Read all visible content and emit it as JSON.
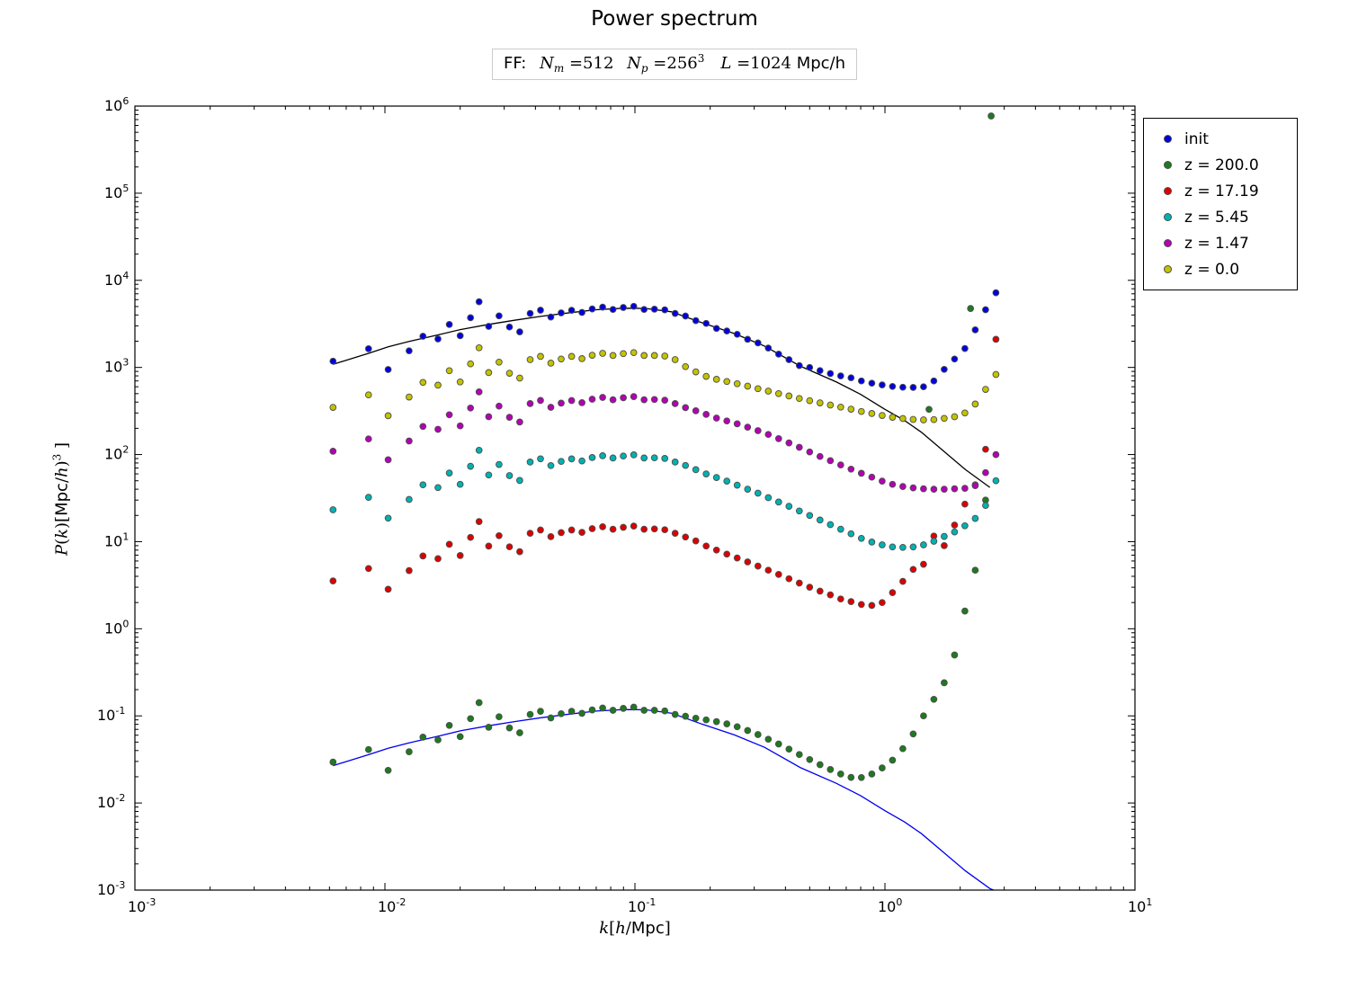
{
  "header": {
    "title": "Power spectrum",
    "subtitle_text": "FF:  N_m =512  N_p =256^3   L =1024 Mpc/h",
    "subtitle_parts": [
      {
        "t": "FF:  ",
        "k": "plain"
      },
      {
        "t": "N",
        "k": "mi"
      },
      {
        "t": "m",
        "k": "sub"
      },
      {
        "t": " =512",
        "k": "mr"
      },
      {
        "t": "  ",
        "k": "plain"
      },
      {
        "t": "N",
        "k": "mi"
      },
      {
        "t": "p",
        "k": "sub"
      },
      {
        "t": " =256",
        "k": "mr"
      },
      {
        "t": "3",
        "k": "sup"
      },
      {
        "t": "  ",
        "k": "plain"
      },
      {
        "t": "L",
        "k": "mi"
      },
      {
        "t": " =1024",
        "k": "mr"
      },
      {
        "t": " Mpc/h",
        "k": "plain"
      }
    ]
  },
  "legend": {
    "items": [
      {
        "label": "init",
        "color": "#0000dd"
      },
      {
        "label": "z = 200.0",
        "color": "#1e7a1e"
      },
      {
        "label": "z = 17.19",
        "color": "#dd0000"
      },
      {
        "label": "z = 5.45",
        "color": "#00b2b2"
      },
      {
        "label": "z = 1.47",
        "color": "#b400b4"
      },
      {
        "label": "z = 0.0",
        "color": "#c3c300"
      }
    ]
  },
  "axes": {
    "xlabel_text": "k[h/Mpc]",
    "ylabel_text": "P(k)[Mpc/h)^3 ]",
    "x_tick_exponents": [
      -3,
      -2,
      -1,
      0,
      1
    ],
    "y_tick_exponents": [
      -3,
      -2,
      -1,
      0,
      1,
      2,
      3,
      4,
      5,
      6
    ]
  },
  "chart_data": {
    "type": "scatter",
    "title": "Power spectrum",
    "xlabel": "k[h/Mpc]",
    "ylabel": "P(k)[Mpc/h)^3 ]",
    "x_log_range": [
      -3,
      1
    ],
    "y_log_range": [
      -3,
      6
    ],
    "grid": false,
    "legend_position": "outside-top-right",
    "k": [
      0.0062,
      0.0086,
      0.0103,
      0.0125,
      0.0142,
      0.0163,
      0.0181,
      0.02,
      0.022,
      0.0238,
      0.026,
      0.0286,
      0.0315,
      0.0346,
      0.0381,
      0.0419,
      0.0461,
      0.0507,
      0.0558,
      0.0614,
      0.0675,
      0.0743,
      0.0817,
      0.0899,
      0.0989,
      0.1088,
      0.1197,
      0.1317,
      0.1448,
      0.1593,
      0.1752,
      0.1927,
      0.212,
      0.2332,
      0.2565,
      0.2822,
      0.3104,
      0.3415,
      0.3756,
      0.4132,
      0.4545,
      0.5,
      0.55,
      0.605,
      0.6655,
      0.732,
      0.8052,
      0.8858,
      0.9744,
      1.0718,
      1.179,
      1.2969,
      1.4266,
      1.5692,
      1.7261,
      1.8988,
      2.0886,
      2.2975,
      2.5272,
      2.78
    ],
    "series": [
      {
        "name": "init",
        "color": "#0000dd",
        "P": [
          1180,
          1640,
          946,
          1550,
          2280,
          2120,
          3110,
          2310,
          3720,
          5680,
          2960,
          3910,
          2910,
          2560,
          4170,
          4540,
          3790,
          4230,
          4530,
          4280,
          4690,
          4920,
          4630,
          4880,
          5030,
          4630,
          4660,
          4580,
          4170,
          3890,
          3450,
          3200,
          2800,
          2620,
          2400,
          2100,
          1910,
          1670,
          1420,
          1230,
          1050,
          1000,
          920,
          850,
          800,
          760,
          700,
          660,
          630,
          605,
          593,
          590,
          600,
          700,
          950,
          1250,
          1650,
          2700,
          4600,
          7200
        ]
      },
      {
        "name": "z = 200.0",
        "color": "#1e7a1e",
        "P": [
          0.0295,
          0.041,
          0.0237,
          0.0388,
          0.057,
          0.0531,
          0.0778,
          0.0578,
          0.093,
          0.142,
          0.074,
          0.0978,
          0.0728,
          0.064,
          0.104,
          0.113,
          0.0948,
          0.106,
          0.113,
          0.107,
          0.117,
          0.123,
          0.116,
          0.122,
          0.126,
          0.116,
          0.116,
          0.114,
          0.104,
          0.099,
          0.094,
          0.09,
          0.086,
          0.081,
          0.075,
          0.068,
          0.061,
          0.054,
          0.0475,
          0.0415,
          0.036,
          0.0315,
          0.0275,
          0.0242,
          0.0215,
          0.0197,
          0.0196,
          0.0215,
          0.0253,
          0.031,
          0.042,
          0.062,
          0.1,
          0.155,
          0.24,
          0.5,
          1.6,
          4.7,
          30,
          null
        ],
        "extra": [
          [
            1.5,
            330
          ],
          [
            2.2,
            4750
          ],
          [
            2.66,
            770000
          ]
        ]
      },
      {
        "name": "z = 17.19",
        "color": "#dd0000",
        "P": [
          3.54,
          4.92,
          2.84,
          4.66,
          6.84,
          6.37,
          9.33,
          6.93,
          11.2,
          17,
          8.88,
          11.7,
          8.73,
          7.68,
          12.5,
          13.6,
          11.4,
          12.7,
          13.6,
          12.8,
          14.1,
          14.8,
          13.9,
          14.6,
          15.1,
          13.9,
          14,
          13.7,
          12.5,
          11.3,
          10.2,
          8.9,
          8,
          7.2,
          6.5,
          5.85,
          5.25,
          4.7,
          4.2,
          3.75,
          3.35,
          3,
          2.7,
          2.45,
          2.2,
          2.05,
          1.9,
          1.85,
          2,
          2.6,
          3.5,
          4.8,
          5.5,
          11.6,
          9,
          15.5,
          27,
          45,
          115,
          2100
        ]
      },
      {
        "name": "z = 5.45",
        "color": "#00b2b2",
        "P": [
          23.2,
          32.3,
          18.6,
          30.5,
          44.9,
          41.8,
          61.3,
          45.5,
          73.3,
          112,
          58.3,
          77,
          57.3,
          50.4,
          82.1,
          89.4,
          74.7,
          83.3,
          89.2,
          84.3,
          92.4,
          96.9,
          91.2,
          96.1,
          99.1,
          91.2,
          91.8,
          90.2,
          82.1,
          75,
          67,
          60,
          54.5,
          49.5,
          44.5,
          40,
          36,
          32,
          28.5,
          25.5,
          22.5,
          20,
          17.7,
          15.7,
          13.9,
          12.3,
          10.9,
          9.9,
          9.2,
          8.7,
          8.6,
          8.7,
          9.2,
          10.1,
          11.5,
          12.9,
          15.2,
          18.5,
          26,
          50
        ]
      },
      {
        "name": "z = 1.47",
        "color": "#b400b4",
        "P": [
          109,
          151,
          87,
          143,
          210,
          195,
          286,
          213,
          342,
          523,
          272,
          360,
          268,
          236,
          384,
          418,
          349,
          389,
          417,
          394,
          432,
          453,
          426,
          449,
          463,
          426,
          429,
          421,
          384,
          345,
          318,
          289,
          262,
          243,
          225,
          206,
          188,
          170,
          152,
          136,
          121,
          107,
          95,
          85,
          76,
          68,
          61,
          55,
          49.5,
          45.5,
          43,
          41.5,
          40.5,
          40,
          40,
          40.5,
          41,
          44,
          62,
          100
        ]
      },
      {
        "name": "z = 0.0",
        "color": "#c3c300",
        "P": [
          348,
          484,
          279,
          457,
          673,
          625,
          918,
          681,
          1100,
          1680,
          873,
          1150,
          858,
          755,
          1230,
          1340,
          1120,
          1250,
          1340,
          1260,
          1380,
          1450,
          1370,
          1440,
          1480,
          1370,
          1370,
          1350,
          1230,
          1020,
          890,
          790,
          730,
          690,
          650,
          610,
          570,
          535,
          500,
          470,
          440,
          415,
          392,
          370,
          350,
          332,
          312,
          296,
          281,
          268,
          259,
          253,
          250,
          252,
          260,
          272,
          300,
          380,
          560,
          830
        ]
      }
    ],
    "lines": [
      {
        "name": "theory-init",
        "color": "#000000",
        "points": [
          [
            0.0062,
            1085
          ],
          [
            0.0086,
            1450
          ],
          [
            0.0103,
            1720
          ],
          [
            0.0125,
            1990
          ],
          [
            0.0163,
            2360
          ],
          [
            0.02,
            2720
          ],
          [
            0.026,
            3120
          ],
          [
            0.033,
            3480
          ],
          [
            0.042,
            3850
          ],
          [
            0.055,
            4250
          ],
          [
            0.07,
            4600
          ],
          [
            0.09,
            4780
          ],
          [
            0.11,
            4760
          ],
          [
            0.14,
            4350
          ],
          [
            0.185,
            3260
          ],
          [
            0.25,
            2450
          ],
          [
            0.33,
            1760
          ],
          [
            0.46,
            1030
          ],
          [
            0.64,
            680
          ],
          [
            0.8,
            490
          ],
          [
            1.0,
            330
          ],
          [
            1.2,
            245
          ],
          [
            1.4,
            180
          ],
          [
            1.7,
            112
          ],
          [
            2.1,
            67
          ],
          [
            2.63,
            42
          ]
        ]
      },
      {
        "name": "theory-z200",
        "color": "#0000ee",
        "points": [
          [
            0.0062,
            0.0268
          ],
          [
            0.0086,
            0.0358
          ],
          [
            0.0103,
            0.0425
          ],
          [
            0.0125,
            0.0491
          ],
          [
            0.0163,
            0.0583
          ],
          [
            0.02,
            0.0672
          ],
          [
            0.026,
            0.0771
          ],
          [
            0.033,
            0.086
          ],
          [
            0.042,
            0.0951
          ],
          [
            0.055,
            0.105
          ],
          [
            0.07,
            0.1136
          ],
          [
            0.09,
            0.1181
          ],
          [
            0.11,
            0.1176
          ],
          [
            0.14,
            0.1074
          ],
          [
            0.185,
            0.0805
          ],
          [
            0.25,
            0.0605
          ],
          [
            0.33,
            0.0435
          ],
          [
            0.46,
            0.0254
          ],
          [
            0.64,
            0.0168
          ],
          [
            0.8,
            0.0121
          ],
          [
            1.0,
            0.00815
          ],
          [
            1.2,
            0.00605
          ],
          [
            1.4,
            0.00445
          ],
          [
            1.7,
            0.00277
          ],
          [
            2.1,
            0.00166
          ],
          [
            2.63,
            0.00104
          ],
          [
            2.72,
            0.001
          ]
        ]
      }
    ]
  }
}
